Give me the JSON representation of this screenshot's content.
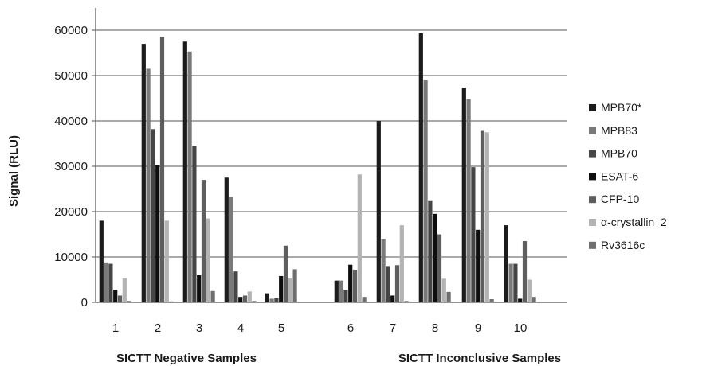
{
  "chart_data": {
    "type": "bar",
    "ylabel": "Signal (RLU)",
    "ylim": [
      0,
      60000
    ],
    "yticks": [
      0,
      10000,
      20000,
      30000,
      40000,
      50000,
      60000
    ],
    "grid": true,
    "legend_position": "right",
    "categories": [
      "1",
      "2",
      "3",
      "4",
      "5",
      "6",
      "7",
      "8",
      "9",
      "10"
    ],
    "group_labels": [
      {
        "text": "SICTT Negative Samples",
        "categories": [
          "1",
          "2",
          "3",
          "4",
          "5"
        ]
      },
      {
        "text": "SICTT Inconclusive Samples",
        "categories": [
          "6",
          "7",
          "8",
          "9",
          "10"
        ]
      }
    ],
    "series": [
      {
        "name": "MPB70*",
        "color": "#1c1c1c",
        "values": [
          18000,
          57000,
          57500,
          27500,
          2000,
          4800,
          40000,
          59300,
          47300,
          17000
        ]
      },
      {
        "name": "MPB83",
        "color": "#7a7a7a",
        "values": [
          8800,
          51500,
          55300,
          23200,
          800,
          4800,
          14000,
          49000,
          44800,
          8500
        ]
      },
      {
        "name": "MPB70",
        "color": "#464646",
        "values": [
          8500,
          38200,
          34500,
          6800,
          1000,
          2800,
          8000,
          22500,
          29800,
          8500
        ]
      },
      {
        "name": "ESAT-6",
        "color": "#0e0e0e",
        "values": [
          2800,
          30200,
          6000,
          1200,
          5800,
          8300,
          1500,
          19500,
          16000,
          800
        ]
      },
      {
        "name": "CFP-10",
        "color": "#5e5e5e",
        "values": [
          1500,
          58500,
          27000,
          1500,
          12500,
          7200,
          8200,
          15000,
          37800,
          13500
        ]
      },
      {
        "name": "α-crystallin_2",
        "color": "#b3b3b3",
        "values": [
          5300,
          18000,
          18500,
          2400,
          5300,
          28200,
          17000,
          5200,
          37500,
          5000
        ]
      },
      {
        "name": "Rv3616c",
        "color": "#6e6e6e",
        "values": [
          300,
          200,
          2500,
          300,
          7300,
          1200,
          300,
          2300,
          700,
          1200
        ]
      }
    ]
  }
}
